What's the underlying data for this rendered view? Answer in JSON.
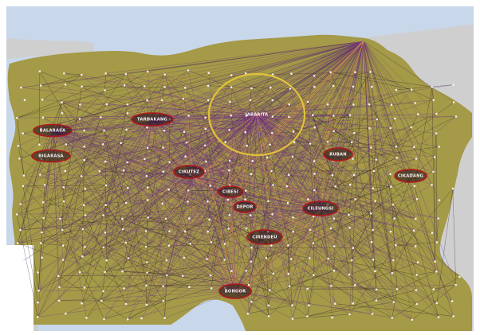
{
  "map": {
    "colors": {
      "sea": "#c9d7ea",
      "land_outside": "#cfcfd0",
      "region_fill": "#a49a47",
      "link_dark": "#1a0a25",
      "link_purple": "#6b2f86",
      "link_orange": "#e0934a",
      "city_ring": "#b3161c",
      "highlight_ring": "#e1c23a",
      "node": "#f2f2f2"
    },
    "places": [
      {
        "id": "balarasa",
        "label": "BALARASA"
      },
      {
        "id": "bigarasa",
        "label": "BIGARASA"
      },
      {
        "id": "tardamang",
        "label": "TARDAKANG"
      },
      {
        "id": "jabarita",
        "label": "JABARITA"
      },
      {
        "id": "ruban",
        "label": "RUBAN"
      },
      {
        "id": "cirutez",
        "label": "CIRUTEZ"
      },
      {
        "id": "cibesi",
        "label": "CIBESI"
      },
      {
        "id": "depor",
        "label": "DEPOR"
      },
      {
        "id": "cileungsi",
        "label": "CILEUNGSI"
      },
      {
        "id": "cikadang",
        "label": "CIKADANG"
      },
      {
        "id": "cirendeu",
        "label": "CIRENDEU"
      },
      {
        "id": "bongor",
        "label": "BONGOR"
      }
    ]
  }
}
